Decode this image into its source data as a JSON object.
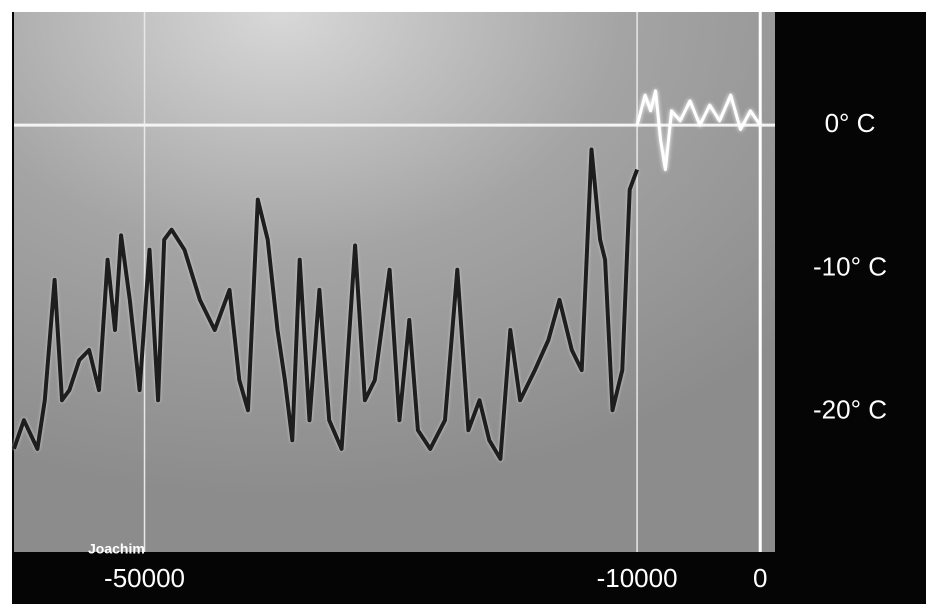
{
  "chart_data": {
    "type": "line",
    "annotation": "Joachim",
    "xlim": [
      -60600,
      1200
    ],
    "ylim": [
      -29.8,
      7.9
    ],
    "xticks": [
      -50000,
      -10000,
      0
    ],
    "yticks": [
      {
        "value": 0,
        "label": "0° C"
      },
      {
        "value": -10,
        "label": "-10° C"
      },
      {
        "value": -20,
        "label": "-20° C"
      }
    ],
    "hline": 0,
    "series": [
      {
        "color": "#1e1e1e",
        "x": [
          -60600,
          -59800,
          -58700,
          -58100,
          -57300,
          -56700,
          -56100,
          -55300,
          -54500,
          -53700,
          -53000,
          -52400,
          -51900,
          -51200,
          -50400,
          -49600,
          -48900,
          -48400,
          -47800,
          -46750,
          -45500,
          -44300,
          -43100,
          -42300,
          -41600,
          -40800,
          -40000,
          -39200,
          -38600,
          -38000,
          -37400,
          -36600,
          -35800,
          -35000,
          -34000,
          -32900,
          -32100,
          -31300,
          -30100,
          -29300,
          -28500,
          -27800,
          -26800,
          -25600,
          -24600,
          -23700,
          -22800,
          -22000,
          -21100,
          -20300,
          -19500,
          -18300,
          -17200,
          -16300,
          -15300,
          -14500,
          -13700,
          -13000,
          -12600,
          -12000,
          -11200,
          -10600,
          -10000
        ],
        "values": [
          -22.6,
          -20.6,
          -22.6,
          -19.2,
          -10.8,
          -19.2,
          -18.5,
          -16.4,
          -15.7,
          -18.5,
          -9.4,
          -14.3,
          -7.7,
          -12.2,
          -18.5,
          -8.7,
          -19.2,
          -8.0,
          -7.3,
          -8.7,
          -12.2,
          -14.3,
          -11.5,
          -17.8,
          -19.9,
          -5.2,
          -8.0,
          -14.3,
          -17.8,
          -22.0,
          -9.4,
          -20.6,
          -11.5,
          -20.6,
          -22.6,
          -8.4,
          -19.2,
          -17.8,
          -10.1,
          -20.6,
          -13.6,
          -21.3,
          -22.6,
          -20.6,
          -10.1,
          -21.3,
          -19.2,
          -22.0,
          -23.3,
          -14.3,
          -19.2,
          -17.1,
          -15.0,
          -12.2,
          -15.7,
          -17.1,
          -1.7,
          -8.0,
          -9.4,
          -19.9,
          -17.1,
          -4.5,
          -3.1
        ]
      },
      {
        "color": "#ffffff",
        "x": [
          -10000,
          -9350,
          -8900,
          -8500,
          -8100,
          -7700,
          -7200,
          -6500,
          -5700,
          -4900,
          -4100,
          -3300,
          -2400,
          -1600,
          -800,
          0
        ],
        "values": [
          0,
          2.1,
          1.0,
          2.4,
          -1.0,
          -3.1,
          1.0,
          0.3,
          1.7,
          0,
          1.4,
          0.3,
          2.1,
          -0.3,
          1.0,
          0
        ]
      }
    ]
  }
}
